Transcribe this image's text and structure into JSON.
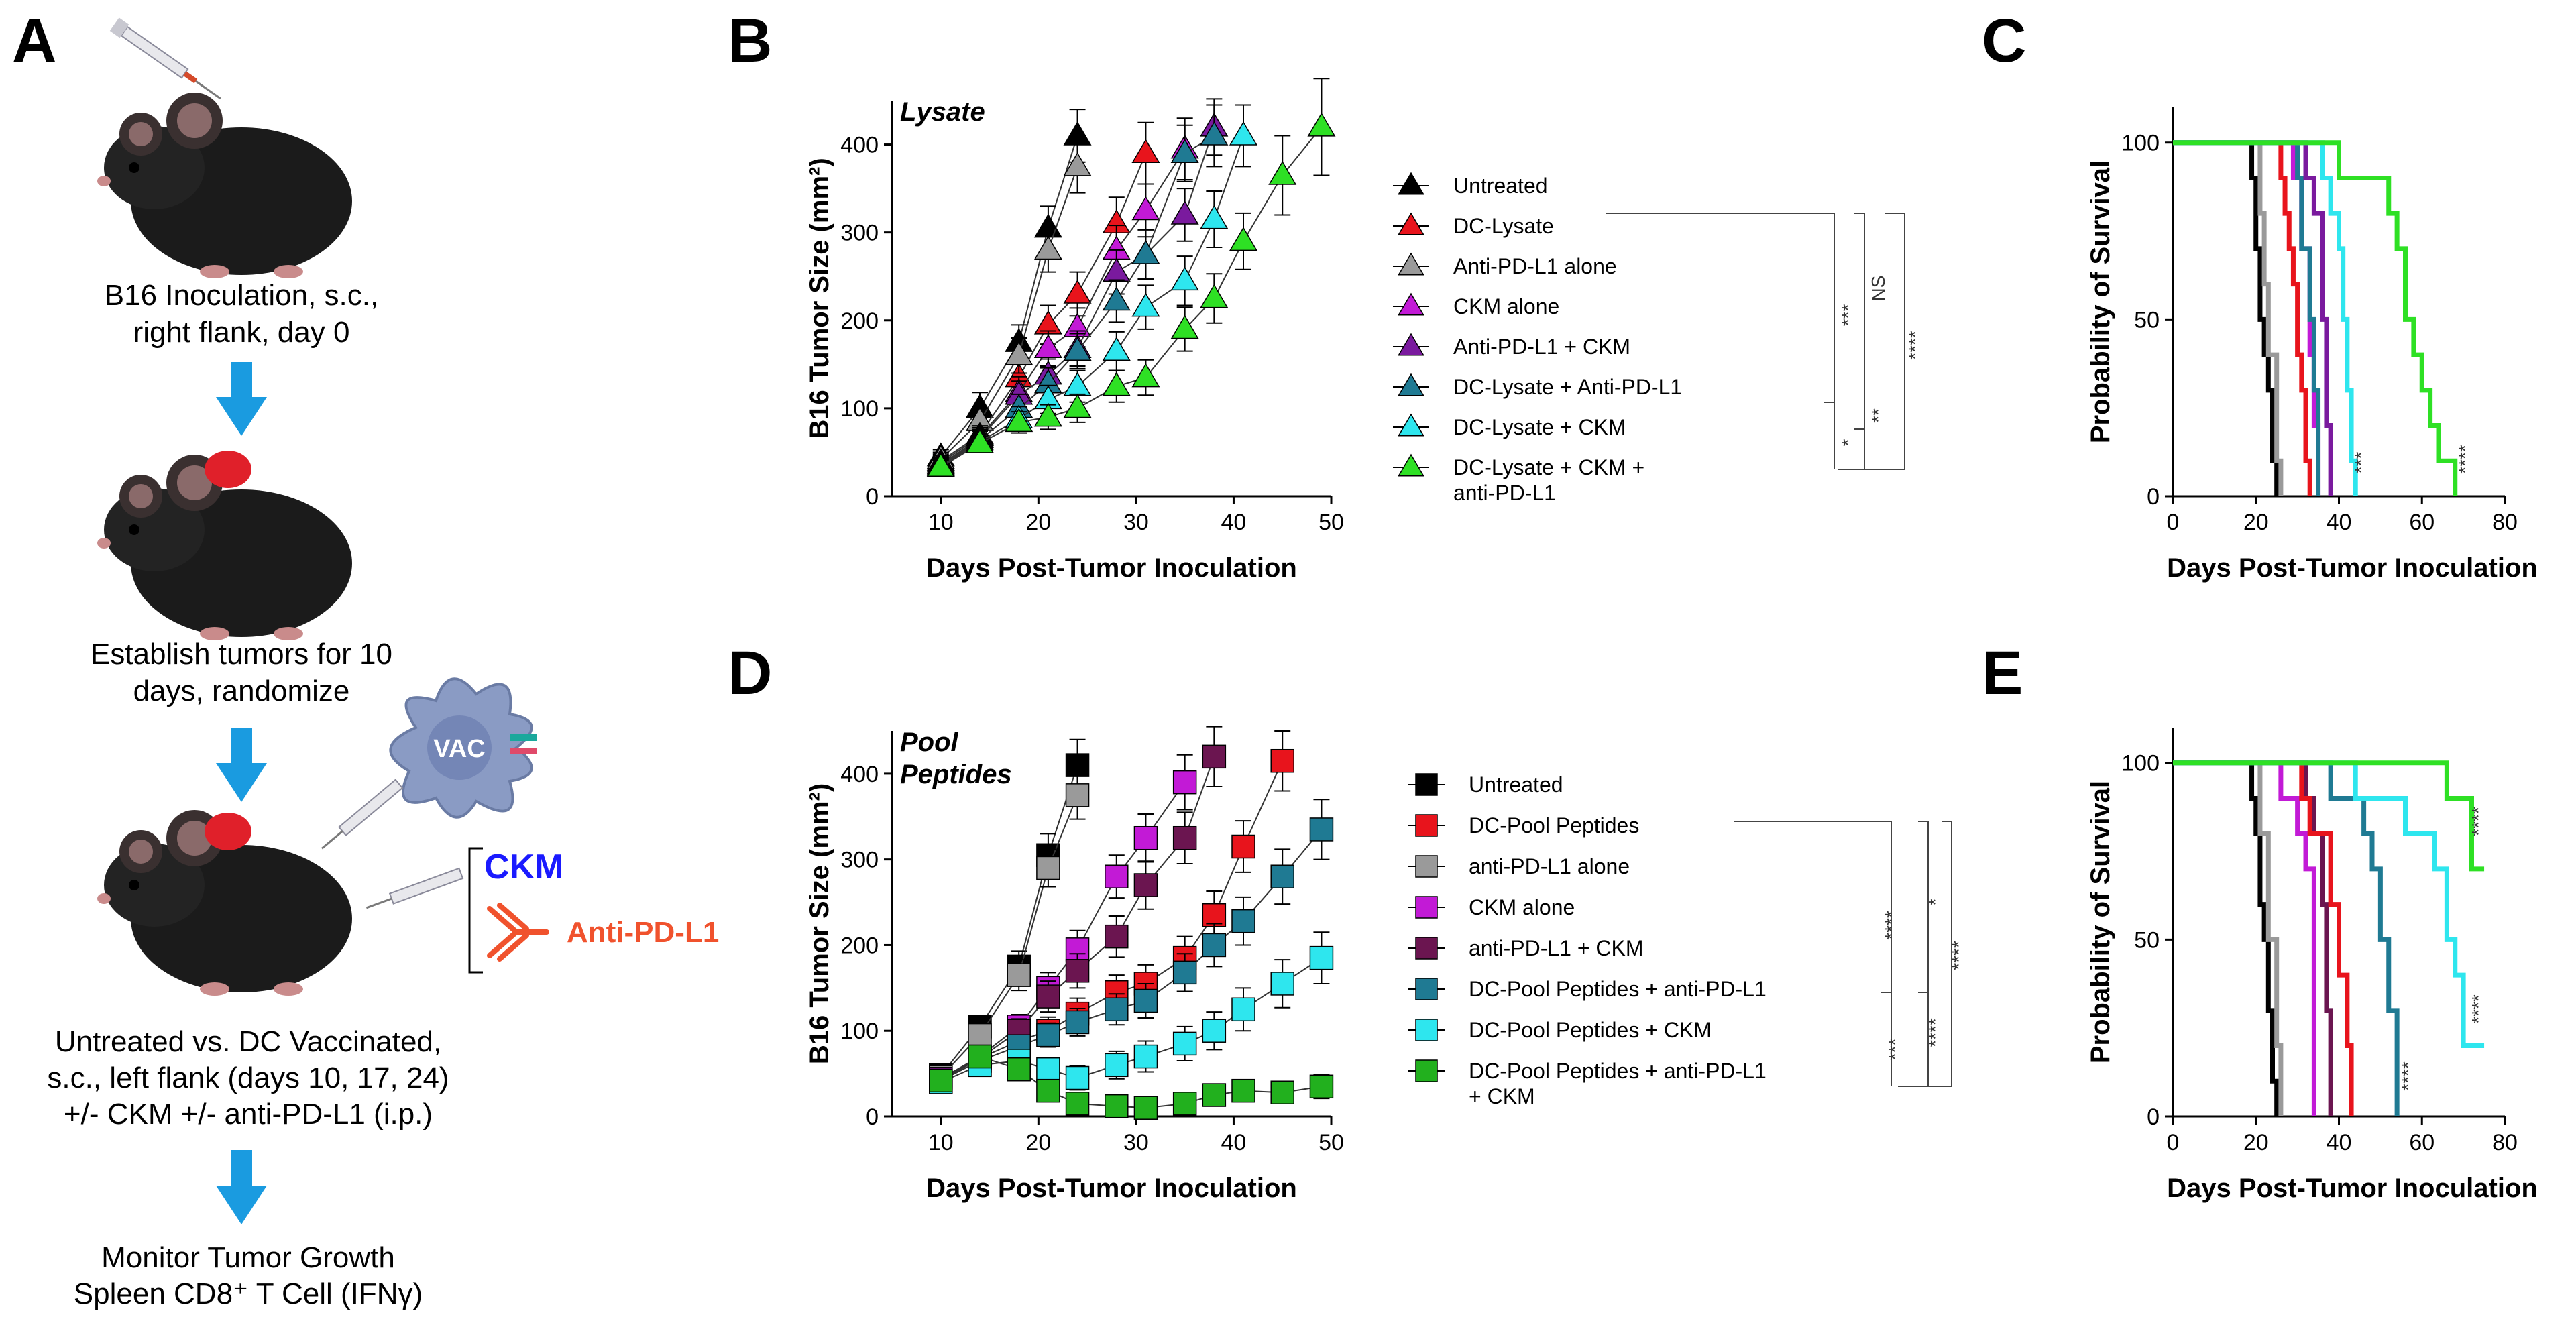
{
  "panel_letters": [
    "A",
    "B",
    "C",
    "D",
    "E"
  ],
  "panel_a": {
    "step1": [
      "B16 Inoculation, s.c.,",
      "right flank, day 0"
    ],
    "step2": [
      "Establish tumors for 10",
      "days, randomize"
    ],
    "step3": [
      "Untreated vs. DC Vaccinated,",
      "s.c., left flank (days 10, 17, 24)",
      "+/- CKM +/- anti-PD-L1 (i.p.)"
    ],
    "step4": [
      "Monitor Tumor Growth",
      "Spleen CD8⁺ T Cell (IFNγ)"
    ],
    "vac_label": "VAC",
    "ckm_label": "CKM",
    "antipdl1_label": "Anti-PD-L1",
    "colors": {
      "arrow": "#1a9be0",
      "ckm": "#1a1aff",
      "antipdl1": "#f0522d",
      "tumor": "#e0202a",
      "mouse": "#1b1b1b",
      "vac": "#8a9bc4"
    }
  },
  "chart_data": [
    {
      "id": "B",
      "type": "line",
      "plot_label": "Lysate",
      "xlabel": "Days Post-Tumor Inoculation",
      "ylabel": "B16 Tumor Size (mm²)",
      "xlim": [
        5,
        50
      ],
      "ylim": [
        0,
        450
      ],
      "xticks": [
        10,
        20,
        30,
        40,
        50
      ],
      "yticks": [
        0,
        100,
        200,
        300,
        400
      ],
      "marker": "triangle",
      "series": [
        {
          "name": "Untreated",
          "color": "#000000",
          "x": [
            10,
            14,
            18,
            21,
            24
          ],
          "y": [
            45,
            100,
            175,
            305,
            410
          ],
          "err": [
            8,
            18,
            20,
            25,
            30
          ]
        },
        {
          "name": "DC-Lysate",
          "color": "#e8141c",
          "x": [
            10,
            14,
            18,
            21,
            24,
            28,
            31
          ],
          "y": [
            40,
            70,
            135,
            195,
            230,
            310,
            390
          ],
          "err": [
            8,
            12,
            18,
            22,
            25,
            30,
            35
          ]
        },
        {
          "name": "Anti-PD-L1 alone",
          "color": "#9a9a9a",
          "x": [
            10,
            14,
            18,
            21,
            24
          ],
          "y": [
            42,
            85,
            160,
            280,
            375
          ],
          "err": [
            8,
            15,
            20,
            25,
            30
          ]
        },
        {
          "name": "CKM alone",
          "color": "#c21ad6",
          "x": [
            10,
            14,
            18,
            21,
            24,
            28,
            31,
            35
          ],
          "y": [
            38,
            68,
            118,
            168,
            192,
            280,
            325,
            395
          ],
          "err": [
            8,
            12,
            18,
            20,
            22,
            28,
            30,
            35
          ]
        },
        {
          "name": "Anti-PD-L1 + CKM",
          "color": "#7a1a9e",
          "x": [
            10,
            14,
            18,
            21,
            24,
            28,
            31,
            35,
            38
          ],
          "y": [
            36,
            66,
            115,
            138,
            168,
            255,
            275,
            320,
            420
          ],
          "err": [
            8,
            12,
            16,
            18,
            20,
            25,
            28,
            30,
            32
          ]
        },
        {
          "name": "DC-Lysate + Anti-PD-L1",
          "color": "#1f7a93",
          "x": [
            10,
            14,
            18,
            21,
            24,
            28,
            31,
            35,
            38
          ],
          "y": [
            35,
            64,
            100,
            128,
            165,
            222,
            275,
            390,
            410
          ],
          "err": [
            8,
            12,
            16,
            18,
            20,
            24,
            28,
            32,
            35
          ]
        },
        {
          "name": "DC-Lysate + CKM",
          "color": "#2ee6ee",
          "x": [
            10,
            14,
            18,
            21,
            24,
            28,
            31,
            35,
            38,
            41
          ],
          "y": [
            34,
            62,
            88,
            110,
            125,
            165,
            215,
            245,
            315,
            410
          ],
          "err": [
            8,
            12,
            14,
            16,
            18,
            22,
            25,
            28,
            32,
            35
          ]
        },
        {
          "name": "DC-Lysate + CKM + anti-PD-L1",
          "color": "#2ee024",
          "x": [
            10,
            14,
            18,
            21,
            24,
            28,
            31,
            35,
            38,
            41,
            45,
            49
          ],
          "y": [
            33,
            60,
            84,
            90,
            100,
            125,
            135,
            190,
            225,
            290,
            365,
            420
          ],
          "err": [
            8,
            10,
            12,
            14,
            16,
            18,
            20,
            25,
            28,
            32,
            45,
            55
          ]
        }
      ],
      "legend": [
        "Untreated",
        "DC-Lysate",
        "Anti-PD-L1 alone",
        "CKM alone",
        "Anti-PD-L1 + CKM",
        "DC-Lysate + Anti-PD-L1",
        "DC-Lysate + CKM",
        [
          "DC-Lysate + CKM +",
          "anti-PD-L1"
        ]
      ],
      "significance": [
        "***",
        "NS",
        "****",
        "*",
        "**"
      ]
    },
    {
      "id": "C",
      "type": "line",
      "subtype": "survival",
      "xlabel": "Days Post-Tumor Inoculation",
      "ylabel": "Probability of Survival",
      "xlim": [
        0,
        80
      ],
      "ylim": [
        0,
        110
      ],
      "xticks": [
        0,
        20,
        40,
        60,
        80
      ],
      "yticks": [
        0,
        50,
        100
      ],
      "series": [
        {
          "name": "Untreated",
          "color": "#000000",
          "x": [
            0,
            18,
            19,
            20,
            21,
            22,
            23,
            24,
            25
          ],
          "y": [
            100,
            100,
            90,
            70,
            50,
            40,
            30,
            10,
            0
          ]
        },
        {
          "name": "Anti-PD-L1 alone",
          "color": "#9a9a9a",
          "x": [
            0,
            19,
            21,
            22,
            23,
            25,
            26
          ],
          "y": [
            100,
            100,
            80,
            60,
            40,
            10,
            0
          ]
        },
        {
          "name": "DC-Lysate",
          "color": "#e8141c",
          "x": [
            0,
            24,
            26,
            27,
            28,
            29,
            30,
            31,
            32,
            33
          ],
          "y": [
            100,
            100,
            90,
            80,
            70,
            60,
            40,
            30,
            10,
            0
          ]
        },
        {
          "name": "CKM alone",
          "color": "#c21ad6",
          "x": [
            0,
            27,
            29,
            31,
            33,
            34,
            35
          ],
          "y": [
            100,
            100,
            90,
            70,
            40,
            20,
            0
          ]
        },
        {
          "name": "DC-Lysate + Anti-PD-L1",
          "color": "#1f7a93",
          "x": [
            0,
            28,
            30,
            31,
            33,
            34,
            35
          ],
          "y": [
            100,
            100,
            90,
            70,
            50,
            30,
            0
          ]
        },
        {
          "name": "Anti-PD-L1 + CKM",
          "color": "#7a1a9e",
          "x": [
            0,
            30,
            32,
            34,
            36,
            37,
            38
          ],
          "y": [
            100,
            100,
            90,
            80,
            50,
            20,
            0
          ]
        },
        {
          "name": "DC-Lysate + CKM",
          "color": "#2ee6ee",
          "x": [
            0,
            34,
            36,
            38,
            40,
            41,
            42,
            43,
            44
          ],
          "y": [
            100,
            100,
            90,
            80,
            70,
            50,
            30,
            10,
            0
          ]
        },
        {
          "name": "DC-Lysate + CKM + anti-PD-L1",
          "color": "#2ee024",
          "x": [
            0,
            38,
            40,
            46,
            52,
            54,
            56,
            58,
            60,
            62,
            64,
            68
          ],
          "y": [
            100,
            100,
            90,
            90,
            80,
            70,
            50,
            40,
            30,
            20,
            10,
            0
          ]
        }
      ],
      "significance": [
        "***",
        "****"
      ]
    },
    {
      "id": "D",
      "type": "line",
      "plot_label": [
        "Pool",
        "Peptides"
      ],
      "xlabel": "Days Post-Tumor Inoculation",
      "ylabel": "B16 Tumor Size (mm²)",
      "xlim": [
        5,
        50
      ],
      "ylim": [
        0,
        450
      ],
      "xticks": [
        10,
        20,
        30,
        40,
        50
      ],
      "yticks": [
        0,
        100,
        200,
        300,
        400
      ],
      "marker": "square",
      "series": [
        {
          "name": "Untreated",
          "color": "#000000",
          "x": [
            10,
            14,
            18,
            21,
            24
          ],
          "y": [
            48,
            105,
            175,
            305,
            410
          ],
          "err": [
            8,
            12,
            18,
            25,
            30
          ]
        },
        {
          "name": "DC-Pool Peptides",
          "color": "#e8141c",
          "x": [
            10,
            14,
            18,
            21,
            24,
            28,
            31,
            35,
            38,
            41,
            45
          ],
          "y": [
            45,
            68,
            88,
            100,
            120,
            145,
            155,
            185,
            235,
            315,
            415
          ],
          "err": [
            8,
            10,
            14,
            16,
            18,
            20,
            22,
            25,
            28,
            30,
            35
          ]
        },
        {
          "name": "anti-PD-L1 alone",
          "color": "#9a9a9a",
          "x": [
            10,
            14,
            18,
            21,
            24
          ],
          "y": [
            46,
            95,
            165,
            290,
            375
          ],
          "err": [
            8,
            12,
            18,
            22,
            28
          ]
        },
        {
          "name": "CKM alone",
          "color": "#c21ad6",
          "x": [
            10,
            14,
            18,
            21,
            24,
            28,
            31,
            35
          ],
          "y": [
            44,
            70,
            105,
            150,
            195,
            280,
            325,
            390
          ],
          "err": [
            8,
            10,
            14,
            18,
            22,
            25,
            28,
            32
          ]
        },
        {
          "name": "anti-PD-L1 + CKM",
          "color": "#6b1550",
          "x": [
            10,
            14,
            18,
            21,
            24,
            28,
            31,
            35,
            38
          ],
          "y": [
            42,
            68,
            100,
            140,
            170,
            210,
            270,
            325,
            420
          ],
          "err": [
            8,
            10,
            14,
            18,
            20,
            24,
            28,
            30,
            35
          ]
        },
        {
          "name": "DC-Pool Peptides + anti-PD-L1",
          "color": "#1f7a93",
          "x": [
            10,
            14,
            18,
            21,
            24,
            28,
            31,
            35,
            38,
            41,
            45,
            49
          ],
          "y": [
            42,
            65,
            82,
            95,
            110,
            125,
            135,
            168,
            200,
            228,
            280,
            335
          ],
          "err": [
            8,
            10,
            12,
            14,
            16,
            18,
            20,
            22,
            25,
            28,
            32,
            35
          ]
        },
        {
          "name": "DC-Pool Peptides + CKM",
          "color": "#2ee6ee",
          "x": [
            10,
            14,
            18,
            21,
            24,
            28,
            31,
            35,
            38,
            41,
            45,
            49
          ],
          "y": [
            40,
            60,
            65,
            55,
            45,
            60,
            70,
            85,
            100,
            125,
            155,
            185
          ],
          "err": [
            8,
            10,
            12,
            12,
            14,
            16,
            18,
            20,
            22,
            25,
            28,
            30
          ]
        },
        {
          "name": "DC-Pool Peptides + anti-PD-L1 + CKM",
          "color": "#22b01e",
          "x": [
            10,
            14,
            18,
            21,
            24,
            28,
            31,
            35,
            38,
            41,
            45,
            49
          ],
          "y": [
            42,
            70,
            55,
            30,
            15,
            12,
            10,
            15,
            25,
            30,
            28,
            35
          ],
          "err": [
            8,
            10,
            10,
            10,
            8,
            8,
            8,
            10,
            12,
            12,
            12,
            14
          ]
        }
      ],
      "legend": [
        "Untreated",
        "DC-Pool Peptides",
        "anti-PD-L1 alone",
        "CKM alone",
        "anti-PD-L1 + CKM",
        "DC-Pool Peptides + anti-PD-L1",
        "DC-Pool Peptides + CKM",
        [
          "DC-Pool Peptides + anti-PD-L1",
          "+ CKM"
        ]
      ],
      "significance": [
        "****",
        "*",
        "****",
        "***",
        "****"
      ]
    },
    {
      "id": "E",
      "type": "line",
      "subtype": "survival",
      "xlabel": "Days Post-Tumor Inoculation",
      "ylabel": "Probability of Survival",
      "xlim": [
        0,
        80
      ],
      "ylim": [
        0,
        110
      ],
      "xticks": [
        0,
        20,
        40,
        60,
        80
      ],
      "yticks": [
        0,
        50,
        100
      ],
      "series": [
        {
          "name": "Untreated",
          "color": "#000000",
          "x": [
            0,
            18,
            19,
            20,
            21,
            22,
            23,
            24,
            25
          ],
          "y": [
            100,
            100,
            90,
            80,
            60,
            50,
            30,
            10,
            0
          ]
        },
        {
          "name": "anti-PD-L1 alone",
          "color": "#9a9a9a",
          "x": [
            0,
            20,
            21,
            23,
            25,
            26
          ],
          "y": [
            100,
            100,
            80,
            50,
            20,
            0
          ]
        },
        {
          "name": "CKM alone",
          "color": "#c21ad6",
          "x": [
            0,
            24,
            26,
            28,
            30,
            32,
            34
          ],
          "y": [
            100,
            100,
            90,
            90,
            80,
            70,
            0
          ]
        },
        {
          "name": "anti-PD-L1 + CKM",
          "color": "#6b1550",
          "x": [
            0,
            30,
            32,
            34,
            36,
            37,
            38
          ],
          "y": [
            100,
            100,
            90,
            80,
            60,
            30,
            0
          ]
        },
        {
          "name": "DC-Pool Peptides",
          "color": "#e8141c",
          "x": [
            0,
            28,
            31,
            33,
            35,
            38,
            40,
            42,
            43
          ],
          "y": [
            100,
            100,
            90,
            80,
            80,
            60,
            40,
            20,
            0
          ]
        },
        {
          "name": "DC-Pool Peptides + anti-PD-L1",
          "color": "#1f7a93",
          "x": [
            0,
            34,
            38,
            42,
            46,
            48,
            50,
            52,
            54
          ],
          "y": [
            100,
            100,
            90,
            90,
            80,
            70,
            50,
            30,
            0
          ]
        },
        {
          "name": "DC-Pool Peptides + CKM",
          "color": "#2ee6ee",
          "x": [
            0,
            38,
            44,
            52,
            56,
            60,
            63,
            66,
            68,
            70,
            75
          ],
          "y": [
            100,
            100,
            90,
            90,
            80,
            80,
            70,
            50,
            40,
            20,
            20
          ]
        },
        {
          "name": "DC-Pool Peptides + anti-PD-L1 + CKM",
          "color": "#2ee024",
          "x": [
            0,
            44,
            54,
            66,
            68,
            72,
            75
          ],
          "y": [
            100,
            100,
            100,
            90,
            90,
            70,
            70
          ]
        }
      ],
      "significance": [
        "****",
        "****",
        "****"
      ]
    }
  ]
}
